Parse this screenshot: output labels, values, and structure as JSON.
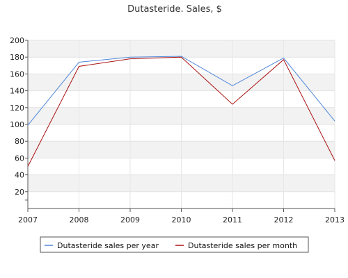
{
  "chart_data": {
    "type": "line",
    "title": "Dutasteride. Sales, $",
    "xlabel": "",
    "ylabel": "",
    "x": [
      "2007",
      "2008",
      "2009",
      "2010",
      "2011",
      "2012",
      "2013"
    ],
    "ylim": [
      0,
      200
    ],
    "yticks": [
      20,
      40,
      60,
      80,
      100,
      120,
      140,
      160,
      180,
      200
    ],
    "grid": true,
    "grid_bands": true,
    "legend_position": "bottom",
    "series": [
      {
        "name": "Dutasteride sales per year",
        "color": "#4f86d9",
        "values": [
          99,
          174,
          180,
          181,
          146,
          179,
          104
        ]
      },
      {
        "name": "Dutasteride sales per month",
        "color": "#aa1111",
        "values": [
          50,
          169,
          178,
          180,
          124,
          177,
          57
        ]
      }
    ]
  }
}
